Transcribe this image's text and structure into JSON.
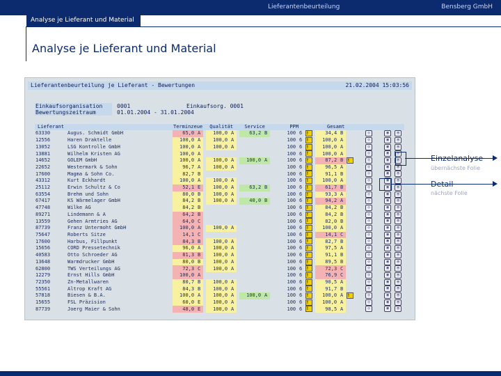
{
  "header": {
    "title": "Lieferantenbeurteilung",
    "company": "Bensberg GmbH"
  },
  "breadcrumb": "Analyse je Lieferant und Material",
  "page_title": "Analyse je Lieferant und Material",
  "sap": {
    "title": "Lieferantenbeurteilung je Lieferant - Bewertungen",
    "datetime": "21.02.2004 15:03:56",
    "meta": [
      {
        "label": "Einkaufsorganisation",
        "value": "0001",
        "extra": "Einkaufsorg. 0001"
      },
      {
        "label": "Bewertungszeitraum",
        "value": "01.01.2004 - 31.01.2004",
        "extra": ""
      }
    ],
    "columns": [
      "Lieferant",
      "",
      "Terminzeue",
      "Qualität",
      "Service",
      "PPM",
      "Gesamt"
    ],
    "rows": [
      {
        "id": "63330",
        "name": "Augus. Schmidt GmbH",
        "t": "65,0",
        "tg": "A",
        "tc": "red",
        "q": "100,0",
        "qg": "A",
        "s": "63,2",
        "sg": "B",
        "sc": "grn",
        "ppm": "100",
        "e": "6",
        "w1": true,
        "g": "34,4",
        "gg": "B",
        "gc": "yel",
        "w2": false
      },
      {
        "id": "12556",
        "name": "Haren Draktelle",
        "t": "100,0",
        "tg": "A",
        "tc": "yel",
        "q": "100,0",
        "qg": "A",
        "s": "",
        "sg": "",
        "sc": "",
        "ppm": "100",
        "e": "6",
        "w1": true,
        "g": "100,0",
        "gg": "A",
        "gc": "yel",
        "w2": false
      },
      {
        "id": "13052",
        "name": "LSG Kontrolle GmbH",
        "t": "100,0",
        "tg": "A",
        "tc": "yel",
        "q": "100,0",
        "qg": "A",
        "s": "",
        "sg": "",
        "sc": "",
        "ppm": "100",
        "e": "6",
        "w1": true,
        "g": "100,0",
        "gg": "A",
        "gc": "yel",
        "w2": false
      },
      {
        "id": "13881",
        "name": "Wilhelm Kristen AG",
        "t": "100,0",
        "tg": "A",
        "tc": "yel",
        "q": "",
        "qg": "",
        "s": "",
        "sg": "",
        "sc": "",
        "ppm": "100",
        "e": "6",
        "w1": true,
        "g": "100,0",
        "gg": "A",
        "gc": "yel",
        "w2": false
      },
      {
        "id": "14652",
        "name": "GOLEM GmbH",
        "t": "100,0",
        "tg": "A",
        "tc": "yel",
        "q": "100,0",
        "qg": "A",
        "s": "100,0",
        "sg": "A",
        "sc": "grn",
        "ppm": "100",
        "e": "6",
        "w1": true,
        "g": "87,2",
        "gg": "B",
        "gc": "red",
        "w2": true
      },
      {
        "id": "22652",
        "name": "Westermark & Sohn",
        "t": "96,7",
        "tg": "A",
        "tc": "yel",
        "q": "100,0",
        "qg": "A",
        "s": "",
        "sg": "",
        "sc": "",
        "ppm": "100",
        "e": "6",
        "w1": true,
        "g": "96,5",
        "gg": "A",
        "gc": "yel",
        "w2": false
      },
      {
        "id": "17600",
        "name": "Magma & Sohn Co.",
        "t": "82,7",
        "tg": "B",
        "tc": "yel",
        "q": "",
        "qg": "",
        "s": "",
        "sg": "",
        "sc": "",
        "ppm": "100",
        "e": "6",
        "w1": true,
        "g": "91,1",
        "gg": "B",
        "gc": "yel",
        "w2": false
      },
      {
        "id": "43312",
        "name": "Kurt Eckhardt",
        "t": "100,0",
        "tg": "A",
        "tc": "yel",
        "q": "100,0",
        "qg": "A",
        "s": "",
        "sg": "",
        "sc": "",
        "ppm": "100",
        "e": "6",
        "w1": true,
        "g": "100,0",
        "gg": "A",
        "gc": "yel",
        "w2": false
      },
      {
        "id": "25112",
        "name": "Erwin Schultz & Co",
        "t": "52,1",
        "tg": "E",
        "tc": "red",
        "q": "100,0",
        "qg": "A",
        "s": "63,2",
        "sg": "B",
        "sc": "grn",
        "ppm": "100",
        "e": "6",
        "w1": true,
        "g": "61,7",
        "gg": "B",
        "gc": "red",
        "w2": false
      },
      {
        "id": "63554",
        "name": "Brehm und Sohn",
        "t": "80,0",
        "tg": "B",
        "tc": "yel",
        "q": "100,0",
        "qg": "A",
        "s": "",
        "sg": "",
        "sc": "",
        "ppm": "100",
        "e": "6",
        "w1": true,
        "g": "93,3",
        "gg": "A",
        "gc": "yel",
        "w2": false
      },
      {
        "id": "67417",
        "name": "KS Wärmelager GmbH",
        "t": "84,2",
        "tg": "B",
        "tc": "yel",
        "q": "100,0",
        "qg": "A",
        "s": "40,0",
        "sg": "B",
        "sc": "grn",
        "ppm": "100",
        "e": "6",
        "w1": true,
        "g": "94,2",
        "gg": "A",
        "gc": "red",
        "w2": false
      },
      {
        "id": "47748",
        "name": "Wilke AG",
        "t": "84,2",
        "tg": "B",
        "tc": "yel",
        "q": "",
        "qg": "",
        "s": "",
        "sg": "",
        "sc": "",
        "ppm": "100",
        "e": "6",
        "w1": true,
        "g": "84,2",
        "gg": "B",
        "gc": "yel",
        "w2": false
      },
      {
        "id": "89271",
        "name": "Lindemann & A",
        "t": "64,2",
        "tg": "B",
        "tc": "red",
        "q": "",
        "qg": "",
        "s": "",
        "sg": "",
        "sc": "",
        "ppm": "100",
        "e": "6",
        "w1": true,
        "g": "84,2",
        "gg": "B",
        "gc": "yel",
        "w2": false
      },
      {
        "id": "13559",
        "name": "Gehen Armtries AG",
        "t": "64,0",
        "tg": "C",
        "tc": "red",
        "q": "",
        "qg": "",
        "s": "",
        "sg": "",
        "sc": "",
        "ppm": "100",
        "e": "6",
        "w1": true,
        "g": "82,0",
        "gg": "B",
        "gc": "yel",
        "w2": false
      },
      {
        "id": "87739",
        "name": "Franz Untermoht GmbH",
        "t": "100,0",
        "tg": "A",
        "tc": "red",
        "q": "100,0",
        "qg": "A",
        "s": "",
        "sg": "",
        "sc": "",
        "ppm": "100",
        "e": "6",
        "w1": true,
        "g": "100,0",
        "gg": "A",
        "gc": "yel",
        "w2": false
      },
      {
        "id": "75647",
        "name": "Roberts Sitze",
        "t": "14,1",
        "tg": "C",
        "tc": "red",
        "q": "",
        "qg": "",
        "s": "",
        "sg": "",
        "sc": "",
        "ppm": "100",
        "e": "6",
        "w1": true,
        "g": "14,1",
        "gg": "C",
        "gc": "red",
        "w2": false
      },
      {
        "id": "17600",
        "name": "Harbus, Fillpunkt",
        "t": "84,3",
        "tg": "B",
        "tc": "red",
        "q": "100,0",
        "qg": "A",
        "s": "",
        "sg": "",
        "sc": "",
        "ppm": "100",
        "e": "6",
        "w1": true,
        "g": "82,7",
        "gg": "B",
        "gc": "yel",
        "w2": false
      },
      {
        "id": "15656",
        "name": "CORD Pressetechnik",
        "t": "96,0",
        "tg": "A",
        "tc": "yel",
        "q": "100,0",
        "qg": "A",
        "s": "",
        "sg": "",
        "sc": "",
        "ppm": "100",
        "e": "6",
        "w1": true,
        "g": "97,5",
        "gg": "A",
        "gc": "yel",
        "w2": false
      },
      {
        "id": "40583",
        "name": "Otto Schroeder AG",
        "t": "81,3",
        "tg": "B",
        "tc": "red",
        "q": "100,0",
        "qg": "A",
        "s": "",
        "sg": "",
        "sc": "",
        "ppm": "100",
        "e": "6",
        "w1": true,
        "g": "91,1",
        "gg": "B",
        "gc": "yel",
        "w2": false
      },
      {
        "id": "13648",
        "name": "Warmdrucker GmbH",
        "t": "80,0",
        "tg": "B",
        "tc": "yel",
        "q": "100,0",
        "qg": "A",
        "s": "",
        "sg": "",
        "sc": "",
        "ppm": "100",
        "e": "6",
        "w1": true,
        "g": "89,5",
        "gg": "B",
        "gc": "yel",
        "w2": false
      },
      {
        "id": "62800",
        "name": "TWS Verteilungs AG",
        "t": "72,3",
        "tg": "C",
        "tc": "red",
        "q": "100,0",
        "qg": "A",
        "s": "",
        "sg": "",
        "sc": "",
        "ppm": "100",
        "e": "6",
        "w1": true,
        "g": "72,3",
        "gg": "C",
        "gc": "red",
        "w2": false
      },
      {
        "id": "12279",
        "name": "Ernst Hills GmbH",
        "t": "100,0",
        "tg": "A",
        "tc": "red",
        "q": "",
        "qg": "",
        "s": "",
        "sg": "",
        "sc": "",
        "ppm": "100",
        "e": "6",
        "w1": true,
        "g": "76,9",
        "gg": "C",
        "gc": "red",
        "w2": false
      },
      {
        "id": "72350",
        "name": "Zn-Metallwaren",
        "t": "80,7",
        "tg": "B",
        "tc": "yel",
        "q": "100,0",
        "qg": "A",
        "s": "",
        "sg": "",
        "sc": "",
        "ppm": "100",
        "e": "6",
        "w1": true,
        "g": "90,5",
        "gg": "A",
        "gc": "yel",
        "w2": false
      },
      {
        "id": "55561",
        "name": "Altrop Kraft AG",
        "t": "84,3",
        "tg": "B",
        "tc": "yel",
        "q": "100,0",
        "qg": "A",
        "s": "",
        "sg": "",
        "sc": "",
        "ppm": "100",
        "e": "6",
        "w1": true,
        "g": "91,7",
        "gg": "B",
        "gc": "yel",
        "w2": false
      },
      {
        "id": "57818",
        "name": "Biesen & B.A.",
        "t": "100,0",
        "tg": "A",
        "tc": "yel",
        "q": "100,0",
        "qg": "A",
        "s": "100,0",
        "sg": "A",
        "sc": "grn",
        "ppm": "100",
        "e": "6",
        "w1": true,
        "g": "100,0",
        "gg": "A",
        "gc": "yel",
        "w2": true
      },
      {
        "id": "15655",
        "name": "FSL Präzision",
        "t": "60,0",
        "tg": "E",
        "tc": "yel",
        "q": "100,0",
        "qg": "A",
        "s": "",
        "sg": "",
        "sc": "",
        "ppm": "100",
        "e": "6",
        "w1": true,
        "g": "100,0",
        "gg": "A",
        "gc": "yel",
        "w2": false
      },
      {
        "id": "87739",
        "name": "Joerg Maier & Sohn",
        "t": "48,0",
        "tg": "E",
        "tc": "red",
        "q": "100,0",
        "qg": "A",
        "s": "",
        "sg": "",
        "sc": "",
        "ppm": "100",
        "e": "6",
        "w1": true,
        "g": "98,5",
        "gg": "A",
        "gc": "yel",
        "w2": false
      }
    ]
  },
  "callouts": [
    {
      "title": "Einzelanalyse",
      "subtitle": "übernächste Folie"
    },
    {
      "title": "Detail",
      "subtitle": "nächste Folie"
    }
  ]
}
